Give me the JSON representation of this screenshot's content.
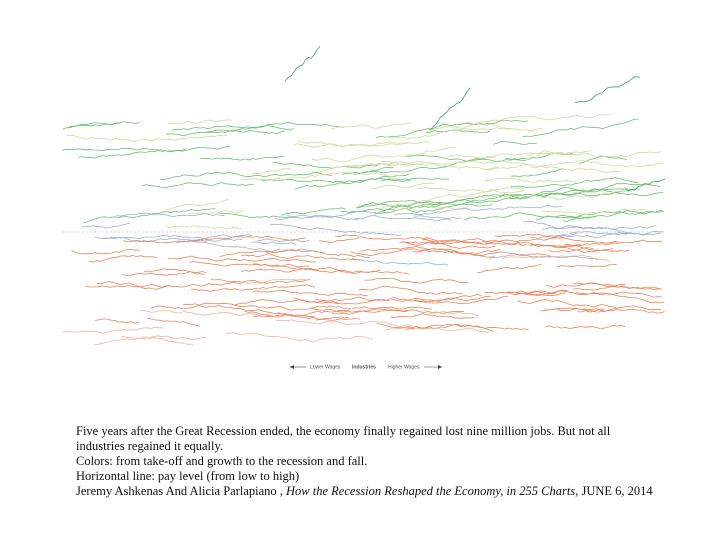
{
  "figure": {
    "legend": {
      "lower": "Lower Wages",
      "middle": "Industries",
      "higher": "Higher Wages"
    }
  },
  "caption": {
    "description": "Five years after the Great Recession ended, the economy finally regained lost nine million jobs. But not all industries regained it equally.",
    "colors": "Colors: from take-off and growth to the recession and fall.",
    "horizontal": "Horizontal line: pay level (from low to high)"
  },
  "citation": {
    "authors": "Jeremy Ashkenas And Alicia Parlapiano ,",
    "title": "How the Recession Reshaped the Economy, in 255 Charts",
    "date": ", JUNE 6, 2014"
  }
}
